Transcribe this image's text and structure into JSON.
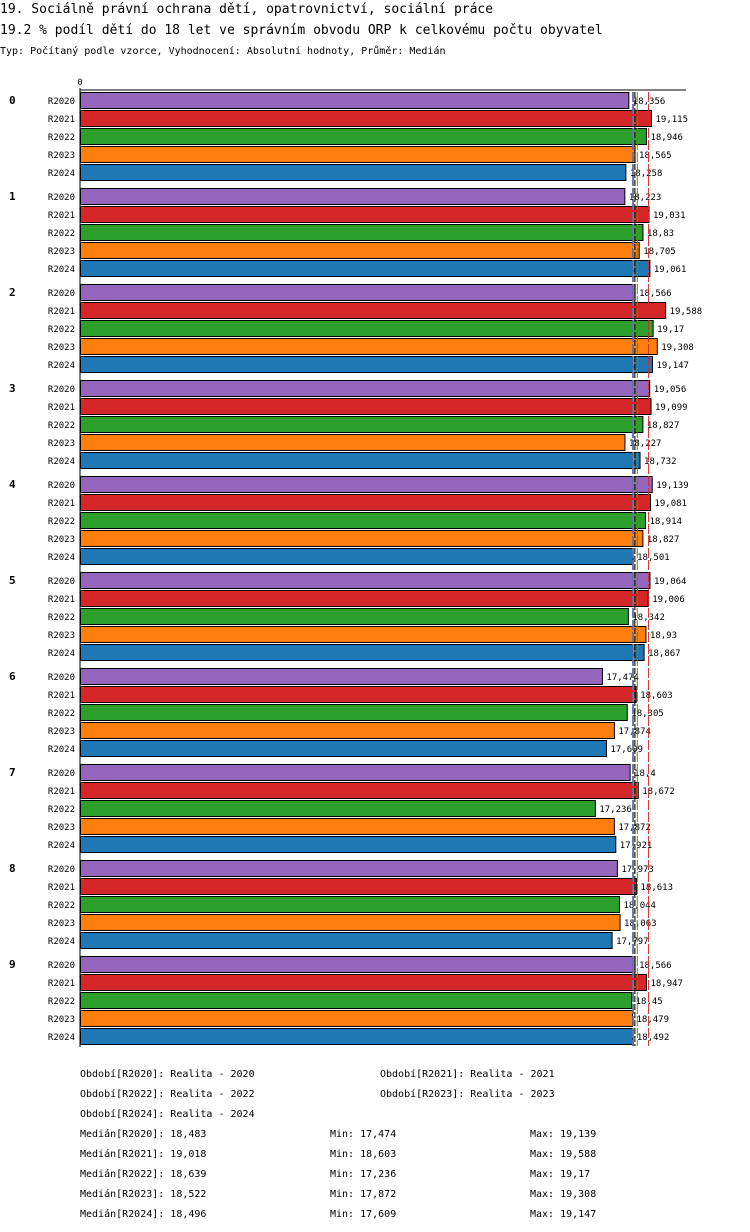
{
  "header": {
    "title": "19. Sociálně právní ochrana dětí, opatrovnictví, sociální práce",
    "subtitle": "19.2 % podíl dětí do 18 let ve správním obvodu ORP k celkovému počtu obyvatel",
    "type_line": "Typ: Počítaný podle vzorce, Vyhodnocení: Absolutní hodnoty, Průměr: Medián"
  },
  "chart_data": {
    "type": "bar",
    "orientation": "horizontal",
    "axis_zero_label": "0",
    "xlim": [
      0,
      19.6
    ],
    "groups": [
      "0",
      "1",
      "2",
      "3",
      "4",
      "5",
      "6",
      "7",
      "8",
      "9"
    ],
    "series": [
      {
        "name": "R2020",
        "color": "#9467bd",
        "values": [
          18.356,
          18.223,
          18.566,
          19.056,
          19.139,
          19.064,
          17.474,
          18.4,
          17.973,
          18.566
        ],
        "labels": [
          "18,356",
          "18,223",
          "18,566",
          "19,056",
          "19,139",
          "19,064",
          "17,474",
          "18,4",
          "17,973",
          "18,566"
        ]
      },
      {
        "name": "R2021",
        "color": "#d62728",
        "values": [
          19.115,
          19.031,
          19.588,
          19.099,
          19.081,
          19.006,
          18.603,
          18.672,
          18.613,
          18.947
        ],
        "labels": [
          "19,115",
          "19,031",
          "19,588",
          "19,099",
          "19,081",
          "19,006",
          "18,603",
          "18,672",
          "18,613",
          "18,947"
        ]
      },
      {
        "name": "R2022",
        "color": "#2ca02c",
        "values": [
          18.946,
          18.83,
          19.17,
          18.827,
          18.914,
          18.342,
          18.305,
          17.236,
          18.044,
          18.45
        ],
        "labels": [
          "18,946",
          "18,83",
          "19,17",
          "18,827",
          "18,914",
          "18,342",
          "18,305",
          "17,236",
          "18,044",
          "18,45"
        ]
      },
      {
        "name": "R2023",
        "color": "#ff7f0e",
        "values": [
          18.565,
          18.705,
          19.308,
          18.227,
          18.827,
          18.93,
          17.874,
          17.872,
          18.063,
          18.479
        ],
        "labels": [
          "18,565",
          "18,705",
          "19,308",
          "18,227",
          "18,827",
          "18,93",
          "17,874",
          "17,872",
          "18,063",
          "18,479"
        ]
      },
      {
        "name": "R2024",
        "color": "#1f77b4",
        "values": [
          18.258,
          19.061,
          19.147,
          18.732,
          18.501,
          18.867,
          17.609,
          17.921,
          17.797,
          18.492
        ],
        "labels": [
          "18,258",
          "19,061",
          "19,147",
          "18,732",
          "18,501",
          "18,867",
          "17,609",
          "17,921",
          "17,797",
          "18,492"
        ]
      }
    ],
    "reference_lines": [
      {
        "name": "median-R2020",
        "value": 18.483,
        "color": "#9467bd"
      },
      {
        "name": "median-R2021",
        "value": 19.018,
        "color": "#d62728"
      },
      {
        "name": "median-R2022",
        "value": 18.639,
        "color": "#2ca02c"
      },
      {
        "name": "median-R2023",
        "value": 18.522,
        "color": "#ff7f0e"
      },
      {
        "name": "median-R2024",
        "value": 18.496,
        "color": "#1f77b4"
      },
      {
        "name": "median-overall",
        "value": 18.56,
        "color": "#000000"
      }
    ]
  },
  "legend": {
    "periods": [
      "Období[R2020]: Realita - 2020",
      "Období[R2021]: Realita - 2021",
      "Období[R2022]: Realita - 2022",
      "Období[R2023]: Realita - 2023",
      "Období[R2024]: Realita - 2024"
    ],
    "stats": [
      {
        "median": "Medián[R2020]: 18,483",
        "min": "Min: 17,474",
        "max": "Max: 19,139"
      },
      {
        "median": "Medián[R2021]: 19,018",
        "min": "Min: 18,603",
        "max": "Max: 19,588"
      },
      {
        "median": "Medián[R2022]: 18,639",
        "min": "Min: 17,236",
        "max": "Max: 19,17"
      },
      {
        "median": "Medián[R2023]: 18,522",
        "min": "Min: 17,872",
        "max": "Max: 19,308"
      },
      {
        "median": "Medián[R2024]: 18,496",
        "min": "Min: 17,609",
        "max": "Max: 19,147"
      }
    ]
  }
}
